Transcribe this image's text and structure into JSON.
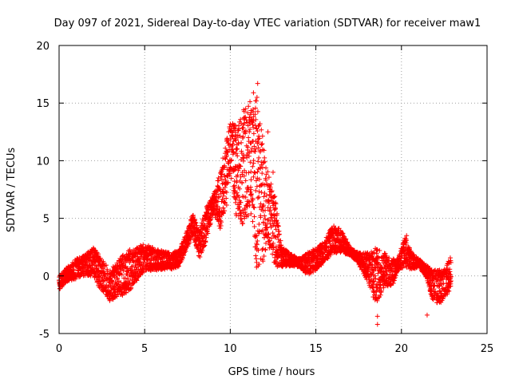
{
  "chart_data": {
    "type": "scatter",
    "title": "Day 097 of 2021, Sidereal Day-to-day VTEC variation (SDTVAR) for receiver maw1",
    "xlabel": "GPS time / hours",
    "ylabel": "SDTVAR / TECUs",
    "xlim": [
      0,
      25
    ],
    "ylim": [
      -5,
      20
    ],
    "xticks": [
      "0",
      "5",
      "10",
      "15",
      "20",
      "25"
    ],
    "yticks": [
      "-5",
      "0",
      "5",
      "10",
      "15",
      "20"
    ],
    "grid": true,
    "marker": "+",
    "color": "#ff0000",
    "series_envelope": {
      "description": "dense cloud of points; lower and upper bounds of SDTVAR vs time",
      "x": [
        0.0,
        0.5,
        1.0,
        1.5,
        2.0,
        2.5,
        3.0,
        3.5,
        4.0,
        4.5,
        5.0,
        5.5,
        6.0,
        6.5,
        7.0,
        7.5,
        7.8,
        8.2,
        8.6,
        9.0,
        9.4,
        9.8,
        10.0,
        10.4,
        10.8,
        11.2,
        11.5,
        11.8,
        12.2,
        12.6,
        13.0,
        13.5,
        14.0,
        14.5,
        15.0,
        15.5,
        16.0,
        16.5,
        17.0,
        17.5,
        18.0,
        18.5,
        19.0,
        19.5,
        19.8,
        20.2,
        20.6,
        21.0,
        21.4,
        21.8,
        22.2,
        22.6,
        22.9
      ],
      "low": [
        -1.2,
        -0.5,
        -0.3,
        0.0,
        0.0,
        -1.5,
        -2.2,
        -1.8,
        -1.5,
        -0.5,
        0.3,
        0.5,
        0.5,
        0.5,
        0.8,
        2.5,
        3.5,
        1.5,
        3.0,
        5.5,
        4.0,
        6.0,
        9.0,
        4.5,
        4.5,
        5.5,
        0.5,
        0.8,
        2.5,
        0.8,
        0.8,
        0.8,
        0.8,
        0.0,
        0.5,
        1.0,
        2.0,
        2.0,
        1.8,
        1.0,
        -0.5,
        -2.5,
        -1.0,
        -0.8,
        0.5,
        0.8,
        0.5,
        0.8,
        0.0,
        -2.0,
        -2.5,
        -1.8,
        -1.0
      ],
      "high": [
        0.0,
        0.8,
        1.5,
        1.8,
        2.5,
        1.5,
        0.5,
        1.5,
        2.2,
        2.5,
        2.8,
        2.5,
        2.2,
        2.0,
        2.2,
        4.0,
        5.5,
        4.0,
        6.0,
        7.0,
        9.0,
        12.0,
        13.5,
        13.0,
        14.5,
        15.5,
        16.5,
        13.0,
        9.0,
        7.0,
        2.5,
        2.0,
        1.5,
        2.0,
        2.5,
        3.0,
        4.5,
        4.0,
        2.5,
        2.0,
        2.0,
        2.5,
        2.0,
        1.5,
        1.5,
        3.5,
        2.0,
        1.5,
        1.0,
        0.5,
        0.5,
        0.8,
        1.8
      ]
    },
    "outliers": [
      {
        "x": 18.6,
        "y": -4.2
      },
      {
        "x": 18.6,
        "y": -3.5
      },
      {
        "x": 21.5,
        "y": -3.4
      },
      {
        "x": 20.3,
        "y": 3.5
      },
      {
        "x": 11.6,
        "y": 16.7
      },
      {
        "x": 12.2,
        "y": 12.5
      },
      {
        "x": 12.5,
        "y": 9.0
      }
    ]
  }
}
